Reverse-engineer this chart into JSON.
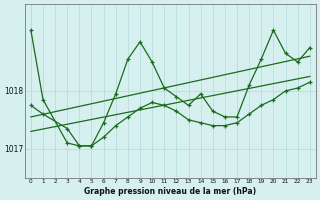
{
  "xlabel": "Graphe pression niveau de la mer (hPa)",
  "background_color": "#d6f0f0",
  "grid_color": "#b8dede",
  "line_color": "#1a6b1a",
  "xlim": [
    -0.5,
    23.5
  ],
  "ylim": [
    1016.55,
    1019.25
  ],
  "yticks": [
    1017,
    1018
  ],
  "xtick_labels": [
    "0",
    "1",
    "2",
    "3",
    "4",
    "5",
    "6",
    "7",
    "8",
    "9",
    "10",
    "11",
    "12",
    "13",
    "14",
    "15",
    "16",
    "17",
    "18",
    "19",
    "20",
    "21",
    "22",
    "23"
  ],
  "series_spiky_x": [
    0,
    1,
    3,
    4,
    5,
    6,
    7,
    8,
    9,
    10,
    11,
    12,
    13,
    14,
    15,
    16,
    17,
    18,
    19,
    20,
    21,
    22,
    23
  ],
  "series_spiky_y": [
    1019.05,
    1017.85,
    1017.1,
    1017.05,
    1017.05,
    1017.45,
    1017.95,
    1018.55,
    1018.85,
    1018.5,
    1018.05,
    1017.9,
    1017.75,
    1017.95,
    1017.65,
    1017.55,
    1017.55,
    1018.1,
    1018.55,
    1019.05,
    1018.65,
    1018.5,
    1018.75
  ],
  "series_low_x": [
    0,
    1,
    3,
    4,
    5,
    6,
    7,
    8,
    9,
    10,
    11,
    12,
    13,
    14,
    15,
    16,
    17,
    18,
    19,
    20,
    21,
    22,
    23
  ],
  "series_low_y": [
    1017.75,
    1017.6,
    1017.35,
    1017.05,
    1017.05,
    1017.2,
    1017.4,
    1017.55,
    1017.7,
    1017.8,
    1017.75,
    1017.65,
    1017.5,
    1017.45,
    1017.4,
    1017.4,
    1017.45,
    1017.6,
    1017.75,
    1017.85,
    1018.0,
    1018.05,
    1018.15
  ],
  "series_trend_x": [
    0,
    23
  ],
  "series_trend_y": [
    1017.55,
    1018.6
  ],
  "series_trend2_x": [
    0,
    23
  ],
  "series_trend2_y": [
    1017.3,
    1018.25
  ]
}
